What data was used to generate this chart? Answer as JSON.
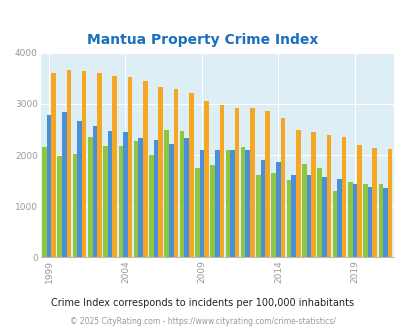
{
  "title": "Mantua Property Crime Index",
  "years": [
    1999,
    2000,
    2001,
    2002,
    2003,
    2004,
    2005,
    2006,
    2007,
    2008,
    2009,
    2010,
    2011,
    2012,
    2013,
    2014,
    2015,
    2016,
    2017,
    2018,
    2019,
    2020,
    2021
  ],
  "mantua": [
    2150,
    1980,
    2020,
    2350,
    2170,
    2170,
    2270,
    2000,
    2500,
    2470,
    1750,
    1800,
    2100,
    2150,
    1620,
    1650,
    1520,
    1830,
    1750,
    1300,
    1470,
    1430,
    1440
  ],
  "nj": [
    2780,
    2840,
    2660,
    2570,
    2480,
    2460,
    2330,
    2300,
    2220,
    2330,
    2090,
    2100,
    2090,
    2090,
    1900,
    1860,
    1620,
    1620,
    1580,
    1530,
    1440,
    1380,
    1360
  ],
  "national": [
    3610,
    3660,
    3650,
    3610,
    3540,
    3520,
    3450,
    3340,
    3290,
    3220,
    3050,
    2970,
    2930,
    2930,
    2870,
    2730,
    2490,
    2460,
    2400,
    2360,
    2200,
    2140,
    2110
  ],
  "mantua_color": "#8dc63f",
  "nj_color": "#4a90d9",
  "national_color": "#f5a623",
  "bg_color": "#deeef5",
  "title_color": "#1a6fbf",
  "legend_label_color": "#990099",
  "note_color": "#222222",
  "copyright_color": "#999999",
  "grid_color": "#ffffff",
  "spine_color": "#bbbbbb",
  "ylim": [
    0,
    4000
  ],
  "yticks": [
    0,
    1000,
    2000,
    3000,
    4000
  ],
  "xtick_years": [
    1999,
    2004,
    2009,
    2014,
    2019
  ],
  "note": "Crime Index corresponds to incidents per 100,000 inhabitants",
  "copyright": "© 2025 CityRating.com - https://www.cityrating.com/crime-statistics/"
}
